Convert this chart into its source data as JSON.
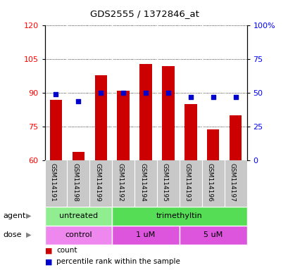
{
  "title": "GDS2555 / 1372846_at",
  "samples": [
    "GSM114191",
    "GSM114198",
    "GSM114199",
    "GSM114192",
    "GSM114194",
    "GSM114195",
    "GSM114193",
    "GSM114196",
    "GSM114197"
  ],
  "count_values": [
    87,
    64,
    98,
    91,
    103,
    102,
    85,
    74,
    80
  ],
  "percentile_values": [
    49,
    44,
    50,
    50,
    50,
    50,
    47,
    47,
    47
  ],
  "ylim_left": [
    60,
    120
  ],
  "ylim_right": [
    0,
    100
  ],
  "yticks_left": [
    60,
    75,
    90,
    105,
    120
  ],
  "yticks_right": [
    0,
    25,
    50,
    75,
    100
  ],
  "ytick_labels_right": [
    "0",
    "25",
    "50",
    "75",
    "100%"
  ],
  "bar_color": "#cc0000",
  "dot_color": "#0000cc",
  "bar_bottom": 60,
  "agent_groups": [
    {
      "label": "untreated",
      "start": 0,
      "end": 3,
      "color": "#90ee90"
    },
    {
      "label": "trimethyltin",
      "start": 3,
      "end": 9,
      "color": "#55dd55"
    }
  ],
  "dose_groups": [
    {
      "label": "control",
      "start": 0,
      "end": 3,
      "color": "#ee88ee"
    },
    {
      "label": "1 uM",
      "start": 3,
      "end": 6,
      "color": "#dd55dd"
    },
    {
      "label": "5 uM",
      "start": 6,
      "end": 9,
      "color": "#dd55dd"
    }
  ],
  "legend_count_label": "count",
  "legend_pct_label": "percentile rank within the sample",
  "xlabel_agent": "agent",
  "xlabel_dose": "dose",
  "tick_label_area_color": "#c8c8c8",
  "plot_bg_color": "#ffffff"
}
